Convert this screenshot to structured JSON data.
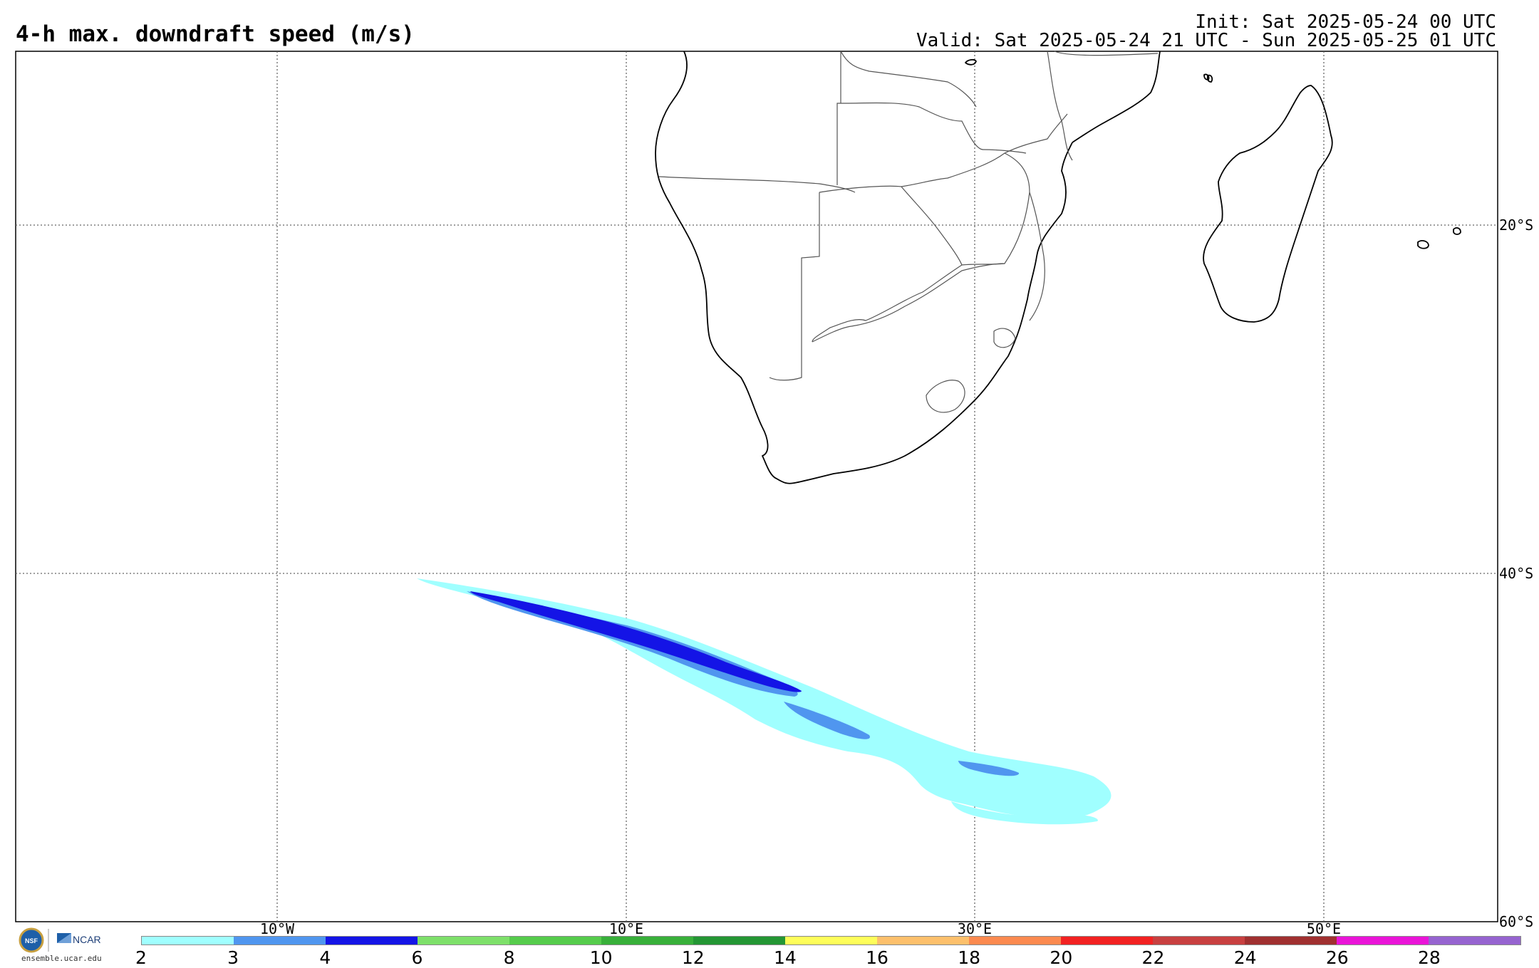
{
  "header": {
    "title": "4-h max. downdraft speed (m/s)",
    "init": "Init: Sat 2025-05-24 00 UTC",
    "valid": "Valid: Sat 2025-05-24 21 UTC - Sun 2025-05-25 01 UTC"
  },
  "map": {
    "lon_labels": [
      "10°W",
      "10°E",
      "30°E",
      "50°E"
    ],
    "lat_labels": [
      "20°S",
      "40°S",
      "60°S"
    ],
    "colors": {
      "land_outline": "#000000",
      "border": "#555555",
      "grid": "#666666",
      "light_cyan": "#a0ffff",
      "mid_blue": "#5096ef",
      "deep_blue": "#1414e6"
    }
  },
  "colorbar": {
    "ticks": [
      "2",
      "3",
      "4",
      "6",
      "8",
      "10",
      "12",
      "14",
      "16",
      "18",
      "20",
      "22",
      "24",
      "26",
      "28"
    ],
    "colors": [
      "#a0ffff",
      "#5096ef",
      "#1414e6",
      "#7ee06a",
      "#56cc4c",
      "#38b03a",
      "#249634",
      "#fefe5a",
      "#fdc06c",
      "#fc8a50",
      "#f22222",
      "#c84040",
      "#a03030",
      "#ea14d8",
      "#9664d0"
    ]
  },
  "branding": {
    "nsf": "NSF",
    "ncar": "NCAR",
    "url": "ensemble.ucar.edu"
  }
}
